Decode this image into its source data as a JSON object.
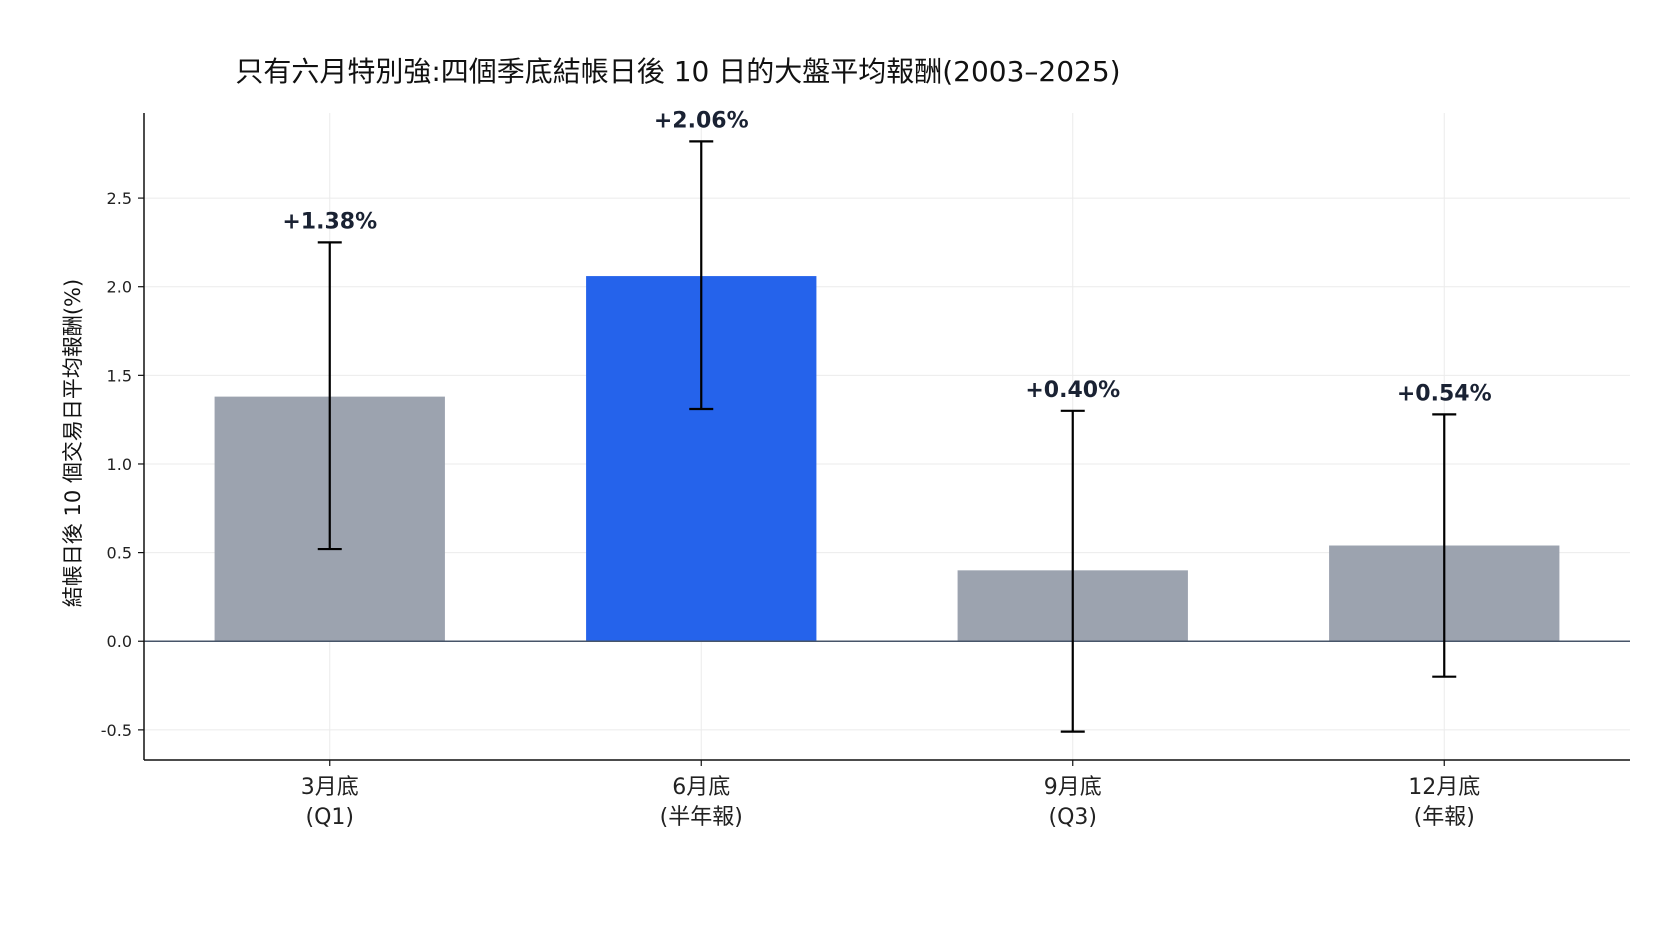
{
  "chart_data": {
    "type": "bar",
    "title": "只有六月特別強:四個季底結帳日後 10 日的大盤平均報酬(2003–2025)",
    "xlabel": "",
    "ylabel": "結帳日後 10 個交易日平均報酬(%)",
    "ylim": [
      -0.67,
      2.98
    ],
    "yticks": [
      -0.5,
      0.0,
      0.5,
      1.0,
      1.5,
      2.0,
      2.5
    ],
    "ytick_labels": [
      "-0.5",
      "0.0",
      "0.5",
      "1.0",
      "1.5",
      "2.0",
      "2.5"
    ],
    "categories": [
      {
        "line1": "3月底",
        "line2": "(Q1)"
      },
      {
        "line1": "6月底",
        "line2": "(半年報)"
      },
      {
        "line1": "9月底",
        "line2": "(Q3)"
      },
      {
        "line1": "12月底",
        "line2": "(年報)"
      }
    ],
    "values": [
      1.38,
      2.06,
      0.4,
      0.54
    ],
    "value_labels": [
      "+1.38%",
      "+2.06%",
      "+0.40%",
      "+0.54%"
    ],
    "error_low": [
      0.52,
      1.31,
      -0.51,
      -0.2
    ],
    "error_high": [
      2.25,
      2.82,
      1.3,
      1.28
    ],
    "bar_colors": [
      "#9ca3af",
      "#2563eb",
      "#9ca3af",
      "#9ca3af"
    ],
    "grid": true,
    "zero_line_color": "#475569",
    "errorbar_color": "#000000"
  }
}
